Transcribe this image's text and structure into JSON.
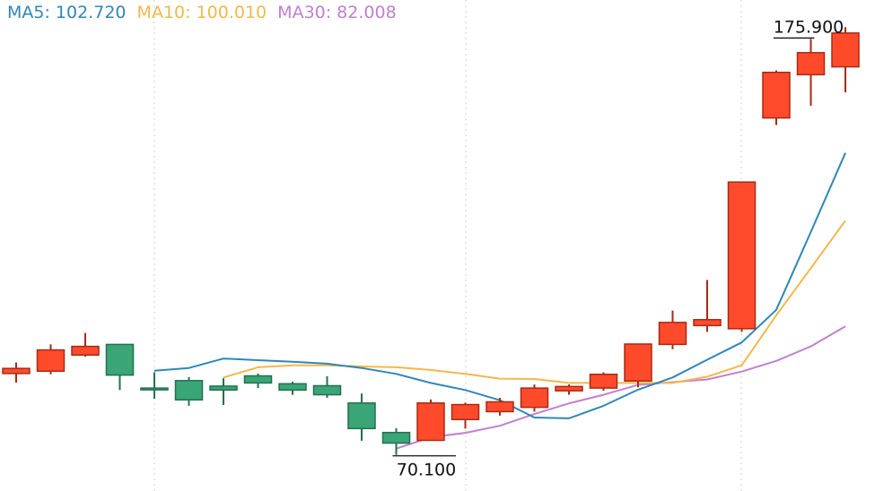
{
  "legend": {
    "ma5": "MA5: 102.720",
    "ma10": "MA10: 100.010",
    "ma30": "MA30: 82.008"
  },
  "colors": {
    "up": "#ff4b2b",
    "down": "#3aa577",
    "ma5": "#2f86b8",
    "ma10": "#f2b84b",
    "ma30": "#c27fd1",
    "grid": "#d0d0d0"
  },
  "chart_data": {
    "type": "candlestick",
    "ylim": [
      60.92,
      185.8
    ],
    "candles": [
      {
        "open": 90.8,
        "close": 92.1,
        "high": 93.6,
        "low": 88.5
      },
      {
        "open": 91.4,
        "close": 96.8,
        "high": 98.2,
        "low": 90.6
      },
      {
        "open": 95.5,
        "close": 97.7,
        "high": 101.1,
        "low": 95.1
      },
      {
        "open": 98.2,
        "close": 90.4,
        "high": 98.2,
        "low": 86.6
      },
      {
        "open": 87.1,
        "close": 86.7,
        "high": 91.1,
        "low": 84.4
      },
      {
        "open": 89.0,
        "close": 84.1,
        "high": 89.9,
        "low": 82.6
      },
      {
        "open": 87.6,
        "close": 86.6,
        "high": 89.6,
        "low": 82.8
      },
      {
        "open": 90.2,
        "close": 88.4,
        "high": 90.8,
        "low": 87.1
      },
      {
        "open": 88.2,
        "close": 86.6,
        "high": 88.7,
        "low": 85.4
      },
      {
        "open": 87.7,
        "close": 85.4,
        "high": 90.1,
        "low": 84.6
      },
      {
        "open": 83.3,
        "close": 76.8,
        "high": 85.7,
        "low": 73.7
      },
      {
        "open": 75.8,
        "close": 73.1,
        "high": 76.9,
        "low": 70.1
      },
      {
        "open": 73.8,
        "close": 83.3,
        "high": 84.2,
        "low": 73.8
      },
      {
        "open": 79.1,
        "close": 82.9,
        "high": 83.4,
        "low": 76.8
      },
      {
        "open": 81.1,
        "close": 83.6,
        "high": 84.6,
        "low": 80.1
      },
      {
        "open": 82.2,
        "close": 87.1,
        "high": 88.0,
        "low": 81.1
      },
      {
        "open": 86.4,
        "close": 87.5,
        "high": 88.0,
        "low": 85.4
      },
      {
        "open": 87.1,
        "close": 90.6,
        "high": 91.1,
        "low": 86.4
      },
      {
        "open": 88.9,
        "close": 98.3,
        "high": 98.3,
        "low": 87.3
      },
      {
        "open": 98.2,
        "close": 103.8,
        "high": 106.8,
        "low": 97.0
      },
      {
        "open": 103.0,
        "close": 104.5,
        "high": 114.6,
        "low": 101.4
      },
      {
        "open": 102.2,
        "close": 139.5,
        "high": 139.5,
        "low": 101.4
      },
      {
        "open": 155.8,
        "close": 167.4,
        "high": 167.9,
        "low": 154.0
      },
      {
        "open": 166.8,
        "close": 172.4,
        "high": 175.9,
        "low": 158.9
      },
      {
        "open": 168.8,
        "close": 177.4,
        "high": 178.9,
        "low": 162.3
      }
    ],
    "ma5": [
      91.5,
      92.2,
      94.6,
      94.2,
      93.8,
      93.3,
      92.2,
      90.7,
      88.4,
      86.6,
      84.0,
      79.6,
      79.4,
      82.6,
      86.7,
      89.8,
      94.3,
      98.7,
      107.0,
      126.8,
      146.9
    ],
    "ma10": [
      89.8,
      92.4,
      92.9,
      92.9,
      92.6,
      92.4,
      91.7,
      90.7,
      89.5,
      89.4,
      88.4,
      88.4,
      88.4,
      88.4,
      90.0,
      92.9,
      105.6,
      117.6,
      129.7
    ],
    "ma30": [
      71.7,
      74.6,
      75.7,
      77.5,
      80.5,
      83.2,
      85.4,
      87.9,
      88.6,
      89.3,
      91.3,
      94.0,
      97.7,
      102.8
    ],
    "annotations": [
      {
        "text": "175.900",
        "value": 175.9
      },
      {
        "text": "70.100",
        "value": 70.1
      }
    ]
  }
}
